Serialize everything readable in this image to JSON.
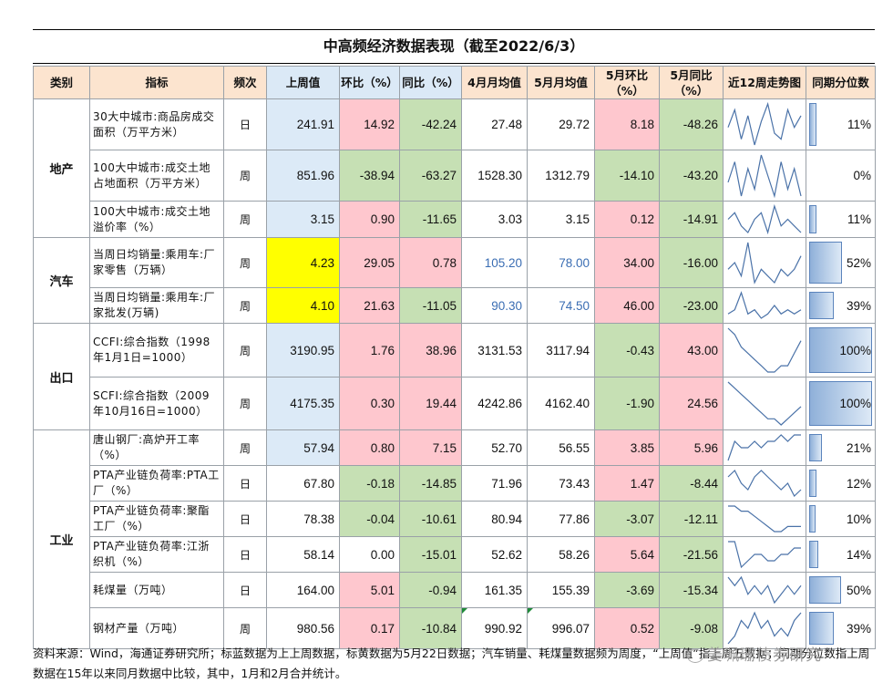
{
  "title": "中高频经济数据表现（截至2022/6/3）",
  "headers": [
    "类别",
    "指标",
    "频次",
    "上周值",
    "环比（%）",
    "同比（%）",
    "4月月均值",
    "5月月均值",
    "5月环比（%）",
    "5月同比（%）",
    "近12周走势图",
    "同期分位数"
  ],
  "rows": [
    {
      "cat": "地产",
      "name": "30大中城市:商品房成交面积（万平方米）",
      "freq": "日",
      "last": "241.91",
      "mom": "14.92",
      "yoy": "-42.24",
      "apr": "27.48",
      "may": "29.72",
      "may_mom": "8.18",
      "may_yoy": "-48.26",
      "trend": [
        5,
        8,
        3,
        7,
        2,
        6,
        9,
        4,
        3,
        8,
        5,
        7
      ],
      "pct": 11,
      "pct_label": "11%"
    },
    {
      "cat": "地产",
      "name": "100大中城市:成交土地占地面积（万平方米）",
      "freq": "周",
      "last": "851.96",
      "mom": "-38.94",
      "yoy": "-63.27",
      "apr": "1528.30",
      "may": "1312.79",
      "may_mom": "-14.10",
      "may_yoy": "-43.20",
      "trend": [
        4,
        7,
        2,
        6,
        3,
        8,
        5,
        2,
        7,
        3,
        6,
        2
      ],
      "pct": 0,
      "pct_label": "0%"
    },
    {
      "cat": "地产",
      "name": "100大中城市:成交土地溢价率（%）",
      "freq": "周",
      "last": "3.15",
      "mom": "0.90",
      "yoy": "-11.65",
      "apr": "3.03",
      "may": "3.15",
      "may_mom": "0.12",
      "may_yoy": "-14.91",
      "trend": [
        5,
        6,
        4,
        3,
        5,
        6,
        3,
        7,
        4,
        5,
        4,
        3
      ],
      "pct": 11,
      "pct_label": "11%"
    },
    {
      "cat": "汽车",
      "name": "当周日均销量:乘用车:厂家零售（万辆）",
      "freq": "周",
      "last": "4.23",
      "mom": "29.05",
      "yoy": "0.78",
      "apr": "105.20",
      "may": "78.00",
      "may_mom": "34.00",
      "may_yoy": "-16.00",
      "trend": [
        4,
        5,
        3,
        8,
        2,
        4,
        3,
        2,
        4,
        3,
        4,
        6
      ],
      "pct": 52,
      "pct_label": "52%"
    },
    {
      "cat": "汽车",
      "name": "当周日均销量:乘用车:厂家批发(万辆)",
      "freq": "周",
      "last": "4.10",
      "mom": "21.63",
      "yoy": "-11.05",
      "apr": "90.30",
      "may": "74.50",
      "may_mom": "46.00",
      "may_yoy": "-23.00",
      "trend": [
        3,
        4,
        8,
        3,
        4,
        2,
        3,
        5,
        3,
        4,
        3,
        4
      ],
      "pct": 39,
      "pct_label": "39%"
    },
    {
      "cat": "出口",
      "name": "CCFI:综合指数（1998年1月1日=1000）",
      "freq": "周",
      "last": "3190.95",
      "mom": "1.76",
      "yoy": "38.96",
      "apr": "3131.53",
      "may": "3117.94",
      "may_mom": "-0.43",
      "may_yoy": "43.00",
      "trend": [
        9,
        8,
        6,
        5,
        4,
        3,
        2,
        2,
        3,
        3,
        5,
        7
      ],
      "pct": 100,
      "pct_label": "100%"
    },
    {
      "cat": "出口",
      "name": "SCFI:综合指数（2009年10月16日=1000）",
      "freq": "周",
      "last": "4175.35",
      "mom": "0.30",
      "yoy": "19.44",
      "apr": "4242.86",
      "may": "4162.40",
      "may_mom": "-1.90",
      "may_yoy": "24.56",
      "trend": [
        9,
        8,
        7,
        6,
        5,
        4,
        3,
        3,
        2,
        3,
        4,
        5
      ],
      "pct": 100,
      "pct_label": "100%"
    },
    {
      "cat": "工业",
      "name": "唐山钢厂:高炉开工率（%）",
      "freq": "周",
      "last": "57.94",
      "mom": "0.80",
      "yoy": "7.15",
      "apr": "52.70",
      "may": "56.55",
      "may_mom": "3.85",
      "may_yoy": "5.96",
      "trend": [
        3,
        6,
        5,
        5,
        6,
        5,
        6,
        6,
        7,
        6,
        7,
        7
      ],
      "pct": 21,
      "pct_label": "21%"
    },
    {
      "cat": "工业",
      "name": "PTA产业链负荷率:PTA工厂（%）",
      "freq": "日",
      "last": "67.80",
      "mom": "-0.18",
      "yoy": "-14.85",
      "apr": "71.96",
      "may": "73.43",
      "may_mom": "1.47",
      "may_yoy": "-8.44",
      "trend": [
        6,
        7,
        5,
        4,
        6,
        7,
        6,
        5,
        4,
        5,
        3,
        4
      ],
      "pct": 12,
      "pct_label": "12%"
    },
    {
      "cat": "工业",
      "name": "PTA产业链负荷率:聚酯工厂（%）",
      "freq": "日",
      "last": "78.38",
      "mom": "-0.04",
      "yoy": "-10.61",
      "apr": "80.94",
      "may": "77.86",
      "may_mom": "-3.07",
      "may_yoy": "-12.11",
      "trend": [
        8,
        8,
        7,
        7,
        6,
        5,
        4,
        3,
        3,
        4,
        4,
        4
      ],
      "pct": 10,
      "pct_label": "10%"
    },
    {
      "cat": "工业",
      "name": "PTA产业链负荷率:江浙织机（%）",
      "freq": "日",
      "last": "58.14",
      "mom": "0.00",
      "yoy": "-15.01",
      "apr": "52.62",
      "may": "58.26",
      "may_mom": "5.64",
      "may_yoy": "-21.56",
      "trend": [
        7,
        7,
        3,
        4,
        5,
        5,
        4,
        4,
        5,
        5,
        6,
        6
      ],
      "pct": 14,
      "pct_label": "14%"
    },
    {
      "cat": "工业",
      "name": "耗煤量（万吨）",
      "freq": "日",
      "last": "164.00",
      "mom": "5.01",
      "yoy": "-0.94",
      "apr": "161.35",
      "may": "155.39",
      "may_mom": "-3.69",
      "may_yoy": "-15.34",
      "trend": [
        7,
        6,
        7,
        5,
        6,
        5,
        6,
        4,
        5,
        6,
        5,
        6
      ],
      "pct": 50,
      "pct_label": "50%"
    },
    {
      "cat": "工业",
      "name": "钢材产量（万吨）",
      "freq": "周",
      "last": "980.56",
      "mom": "0.17",
      "yoy": "-10.84",
      "apr": "990.92",
      "may": "996.07",
      "may_mom": "0.52",
      "may_yoy": "-9.08",
      "trend": [
        4,
        5,
        7,
        6,
        8,
        6,
        7,
        5,
        6,
        5,
        7,
        8
      ],
      "pct": 39,
      "pct_label": "39%"
    }
  ],
  "footnote": "资料来源：Wind，海通证券研究所；标蓝数据为上上周数据，标黄数据为5月22日数据；汽车销量、耗煤量数据频为周度，“上周值”指上周五数据；同期分位数指上周数据在15年以来同月数据中比较，其中，1月和2月合并统计。",
  "watermark": "姜珮珊债券研究",
  "colors": {
    "header": "#fce4cf",
    "blue": "#dceaf7",
    "yellow": "#ffff00",
    "pink": "#fec7ce",
    "green": "#c6e0b4",
    "spark": "#4a72a8",
    "blue_text": "#3a6db3"
  }
}
